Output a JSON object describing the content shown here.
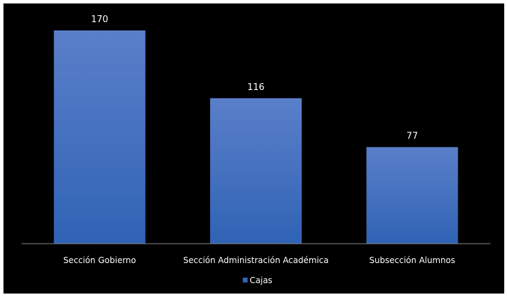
{
  "chart_data": {
    "type": "bar",
    "categories": [
      "Sección Gobierno",
      "Sección Administración Académica",
      "Subsección Alumnos"
    ],
    "series": [
      {
        "name": "Cajas",
        "values": [
          170,
          116,
          77
        ]
      }
    ],
    "title": "",
    "xlabel": "",
    "ylabel": "",
    "ylim": [
      0,
      180
    ],
    "grid": false,
    "legend_position": "bottom",
    "data_labels": true,
    "colors": {
      "background": "#000000",
      "bar_top": "#5a7fc9",
      "bar_bottom": "#3063b5",
      "axis": "#8a8a8a",
      "text": "#ffffff"
    }
  }
}
